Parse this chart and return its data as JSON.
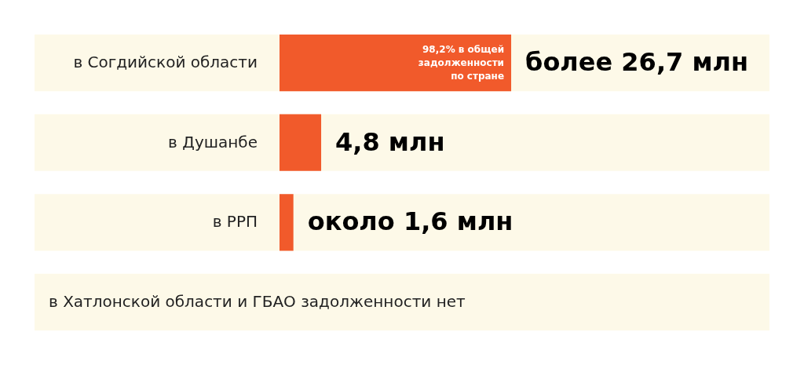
{
  "chart_data": {
    "type": "bar",
    "orientation": "horizontal",
    "categories": [
      "в Согдийской области",
      "в Душанбе",
      "в РРП",
      "в Хатлонской области и ГБАО задолженности нет"
    ],
    "values": [
      26.7,
      4.8,
      1.6,
      null
    ],
    "color": "#f15a2b",
    "value_labels": [
      "более 26,7 млн",
      "4,8 млн",
      "около 1,6 млн",
      null
    ],
    "annotations": [
      {
        "text": "98,2% в общей\nзадолженности\nпо стране",
        "x": 26.7,
        "y": "в Согдийской области"
      }
    ],
    "bands": [
      {
        "axis": "y",
        "from": "в Согдийской области",
        "to": "в Согдийской области",
        "color": "#fdf9e8"
      },
      {
        "axis": "y",
        "from": "в Душанбе",
        "to": "в Душанбе",
        "color": "#fdf9e8"
      },
      {
        "axis": "y",
        "from": "в РРП",
        "to": "в РРП",
        "color": "#fdf9e8"
      },
      {
        "axis": "y",
        "from": "в Хатлонской области и ГБАО задолженности нет",
        "to": "в Хатлонской области и ГБАО задолженности нет",
        "color": "#fdf9e8"
      }
    ]
  }
}
